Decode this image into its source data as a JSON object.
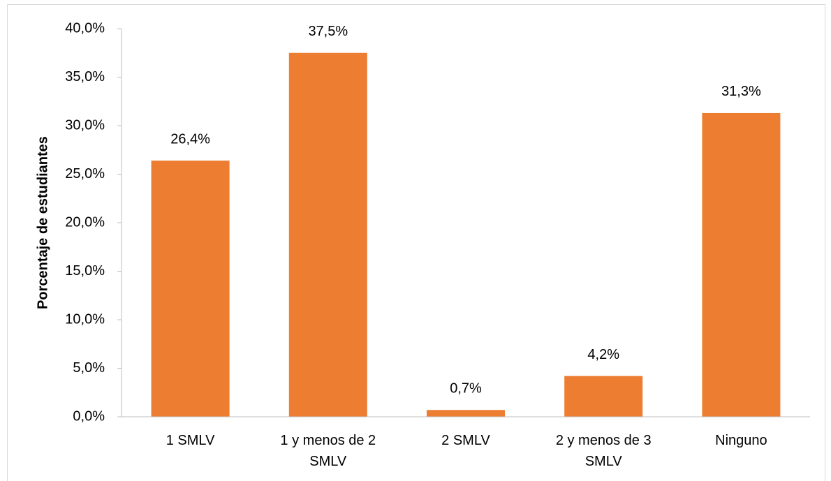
{
  "chart_data": {
    "type": "bar",
    "y_axis_label": "Porcentaje de estudiantes",
    "categories": [
      "1 SMLV",
      "1 y menos de 2 SMLV",
      "2 SMLV",
      "2 y menos de 3 SMLV",
      "Ninguno"
    ],
    "values": [
      26.4,
      37.5,
      0.7,
      4.2,
      31.3
    ],
    "value_labels": [
      "26,4%",
      "37,5%",
      "0,7%",
      "4,2%",
      "31,3%"
    ],
    "color": "#ed7d31",
    "ylim": [
      0,
      40
    ],
    "yticks": [
      {
        "value": 0,
        "label": "0,0%"
      },
      {
        "value": 5,
        "label": "5,0%"
      },
      {
        "value": 10,
        "label": "10,0%"
      },
      {
        "value": 15,
        "label": "15,0%"
      },
      {
        "value": 20,
        "label": "20,0%"
      },
      {
        "value": 25,
        "label": "25,0%"
      },
      {
        "value": 30,
        "label": "30,0%"
      },
      {
        "value": 35,
        "label": "35,0%"
      },
      {
        "value": 40,
        "label": "40,0%"
      }
    ],
    "grid": false
  }
}
